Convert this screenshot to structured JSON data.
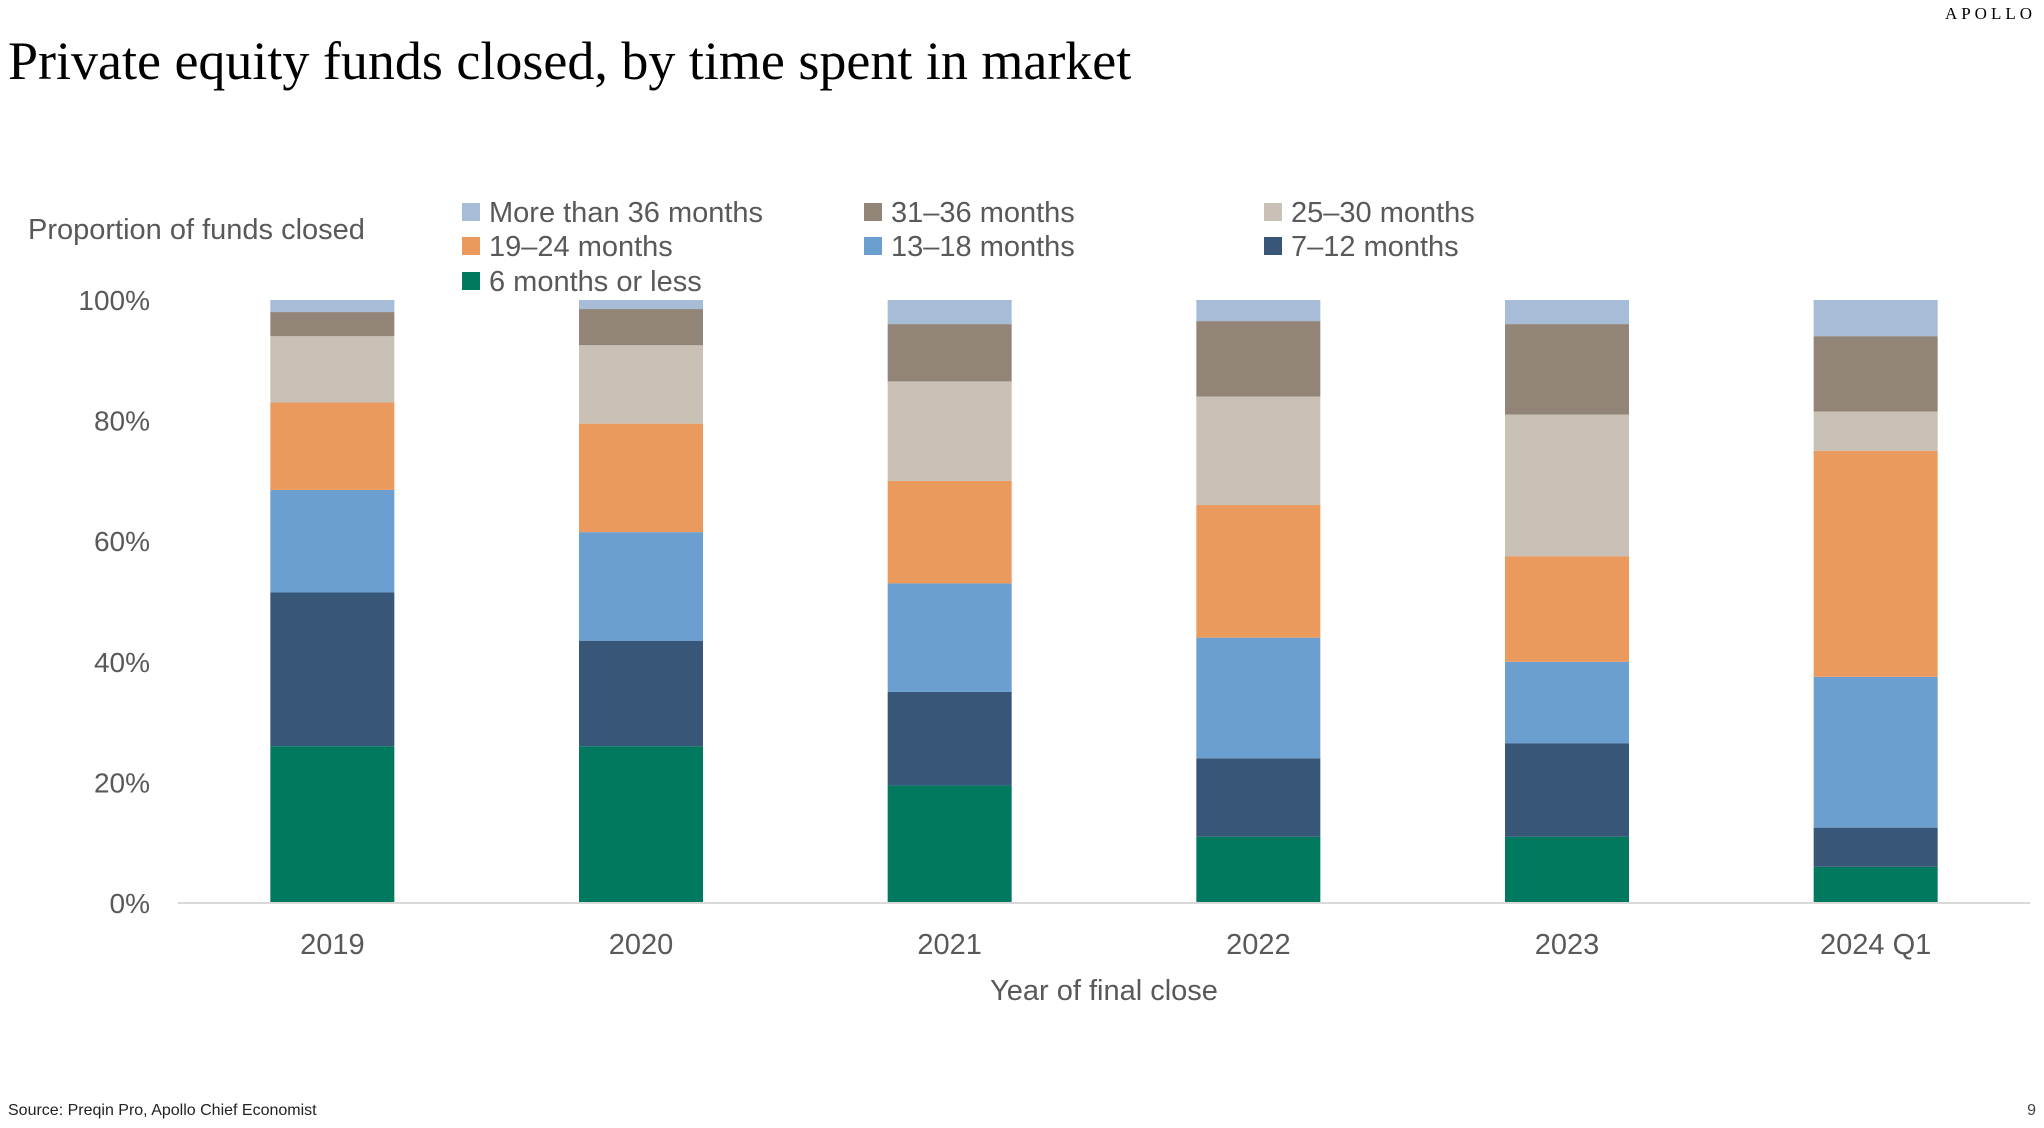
{
  "brand": "APOLLO",
  "title": "Private equity funds closed, by time spent in market",
  "source": "Source: Preqin Pro, Apollo Chief Economist",
  "page_number": "9",
  "chart_data": {
    "type": "bar",
    "stacked": true,
    "title": "Private equity funds closed, by time spent in market",
    "ylabel": "Proportion of funds closed",
    "xlabel": "Year of final close",
    "ylim": [
      0,
      100
    ],
    "y_ticks": [
      0,
      20,
      40,
      60,
      80,
      100
    ],
    "y_tick_format": "%",
    "categories": [
      "2019",
      "2020",
      "2021",
      "2022",
      "2023",
      "2024 Q1"
    ],
    "legend_placement": "top",
    "legend_order": [
      "More than 36 months",
      "31–36 months",
      "25–30 months",
      "19–24 months",
      "13–18 months",
      "7–12 months",
      "6 months or less"
    ],
    "series": [
      {
        "name": "6 months or less",
        "color": "#00795F",
        "values": [
          26,
          26,
          19.5,
          11,
          11,
          6
        ]
      },
      {
        "name": "7–12 months",
        "color": "#385677",
        "values": [
          25.5,
          17.5,
          15.5,
          13,
          15.5,
          6.5
        ]
      },
      {
        "name": "13–18 months",
        "color": "#6A9FD0",
        "values": [
          17,
          18,
          18,
          20,
          13.5,
          25
        ]
      },
      {
        "name": "19–24 months",
        "color": "#EB9A5E",
        "values": [
          14.5,
          18,
          17,
          22,
          17.5,
          37.5
        ]
      },
      {
        "name": "25–30 months",
        "color": "#C9C0B6",
        "values": [
          11,
          13,
          16.5,
          18,
          23.5,
          6.5
        ]
      },
      {
        "name": "31–36 months",
        "color": "#928577",
        "values": [
          4,
          6,
          9.5,
          12.5,
          15,
          12.5
        ]
      },
      {
        "name": "More than 36 months",
        "color": "#A7BCD6",
        "values": [
          2,
          1.5,
          4,
          3.5,
          4,
          6
        ]
      }
    ],
    "colors": {
      "axis_line": "#d9d9d9",
      "tick_text": "#595959"
    }
  }
}
